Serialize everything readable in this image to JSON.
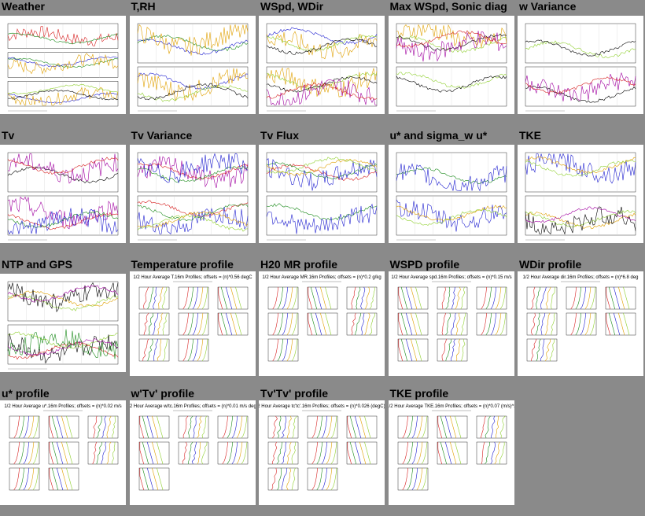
{
  "cells": [
    {
      "title": "Weather",
      "kind": "ts",
      "panels": 3
    },
    {
      "title": "T,RH",
      "kind": "ts",
      "panels": 2
    },
    {
      "title": "WSpd, WDir",
      "kind": "ts",
      "panels": 2
    },
    {
      "title": "Max WSpd, Sonic diag",
      "kind": "ts",
      "panels": 2
    },
    {
      "title": "w Variance",
      "kind": "ts",
      "panels": 2
    },
    {
      "title": "Tv",
      "kind": "ts",
      "panels": 2
    },
    {
      "title": "Tv Variance",
      "kind": "ts",
      "panels": 2
    },
    {
      "title": "Tv Flux",
      "kind": "ts",
      "panels": 2
    },
    {
      "title": "u* and sigma_w u*",
      "kind": "ts",
      "panels": 2
    },
    {
      "title": "TKE",
      "kind": "ts",
      "panels": 2
    },
    {
      "title": "NTP and GPS",
      "kind": "ts",
      "panels": 2
    },
    {
      "title": "Temperature profile",
      "kind": "profile",
      "header": "1/2 Hour Average T.16m Profiles; offsets = (n)*0.56 degC"
    },
    {
      "title": "H20 MR profile",
      "kind": "profile",
      "header": "1/2 Hour Average MR.16m Profiles; offsets = (n)*0.2 g/kg"
    },
    {
      "title": "WSPD profile",
      "kind": "profile",
      "header": "1/2 Hour Average spd.16m Profiles; offsets = (n)*0.15 m/s"
    },
    {
      "title": "WDir profile",
      "kind": "profile",
      "header": "1/2 Hour Average dir.16m Profiles; offsets = (n)*6.8 deg"
    },
    {
      "title": "u* profile",
      "kind": "profile",
      "header": "1/2 Hour Average u*.16m Profiles; offsets = (n)*0.02 m/s"
    },
    {
      "title": "w'Tv' profile",
      "kind": "profile",
      "header": "1/2 Hour Average w/tc.16m Profiles; offsets = (n)*0.01 m/s degC"
    },
    {
      "title": "Tv'Tv' profile",
      "kind": "profile",
      "header": "1/2 Hour Average tc'tc'.16m Profiles; offsets = (n)*0.026 (degC)^2"
    },
    {
      "title": "TKE profile",
      "kind": "profile",
      "header": "1/2 Hour Average TKE.16m Profiles; offsets = (n)*0.07 (m/s)^2"
    }
  ],
  "colors": {
    "background": "#8a8a8a",
    "panel": "#ffffff",
    "series": [
      "#d62020",
      "#1a8a1a",
      "#2020d0",
      "#e0a000",
      "#90d030",
      "#000000",
      "#a000a0"
    ]
  }
}
